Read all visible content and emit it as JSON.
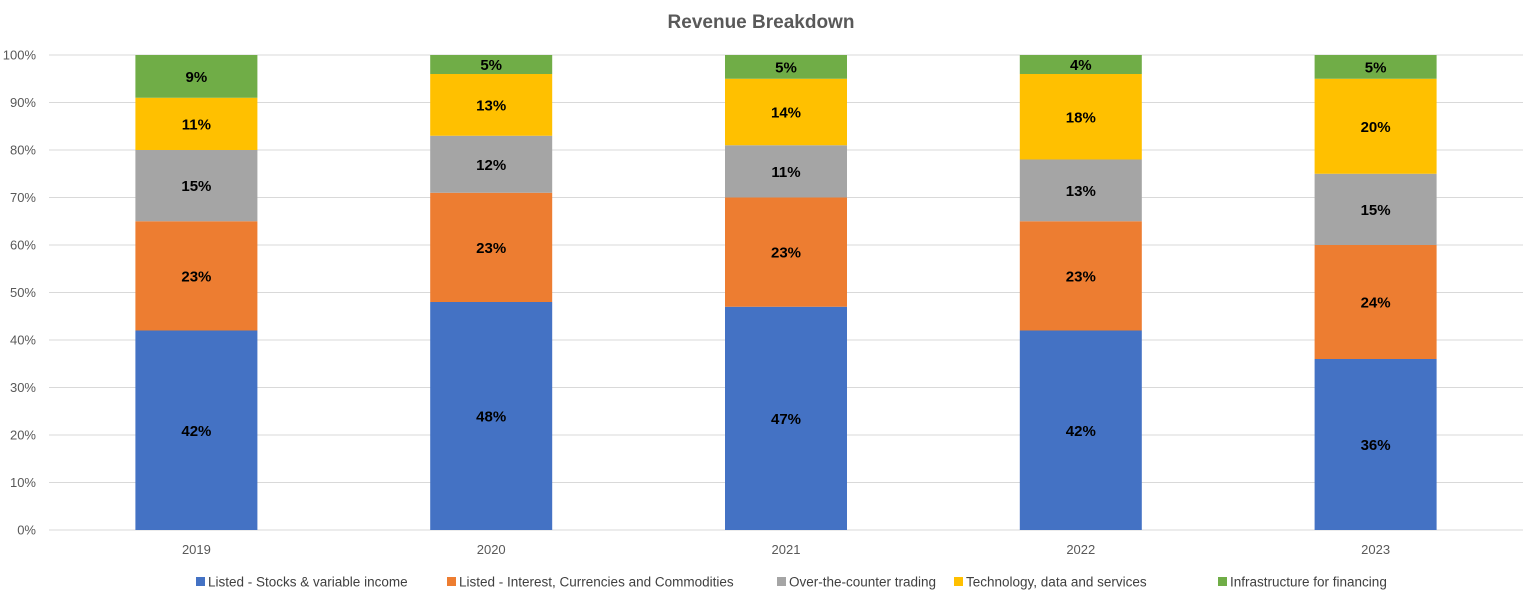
{
  "chart_data": {
    "type": "bar",
    "stacked": "percent",
    "title": "Revenue Breakdown",
    "xlabel": "",
    "ylabel": "",
    "ylim": [
      0,
      100
    ],
    "y_ticks": [
      "0%",
      "10%",
      "20%",
      "30%",
      "40%",
      "50%",
      "60%",
      "70%",
      "80%",
      "90%",
      "100%"
    ],
    "grid": true,
    "legend_position": "bottom",
    "categories": [
      "2019",
      "2020",
      "2021",
      "2022",
      "2023"
    ],
    "series": [
      {
        "name": "Listed - Stocks & variable income",
        "color": "#4472C4",
        "values": [
          42,
          48,
          47,
          42,
          36
        ]
      },
      {
        "name": "Listed - Interest, Currencies and Commodities",
        "color": "#ED7D31",
        "values": [
          23,
          23,
          23,
          23,
          24
        ]
      },
      {
        "name": "Over-the-counter trading",
        "color": "#A5A5A5",
        "values": [
          15,
          12,
          11,
          13,
          15
        ]
      },
      {
        "name": "Technology, data and services",
        "color": "#FFC000",
        "values": [
          11,
          13,
          14,
          18,
          20
        ]
      },
      {
        "name": "Infrastructure for financing",
        "color": "#70AD47",
        "values": [
          9,
          5,
          5,
          4,
          5
        ]
      }
    ]
  }
}
